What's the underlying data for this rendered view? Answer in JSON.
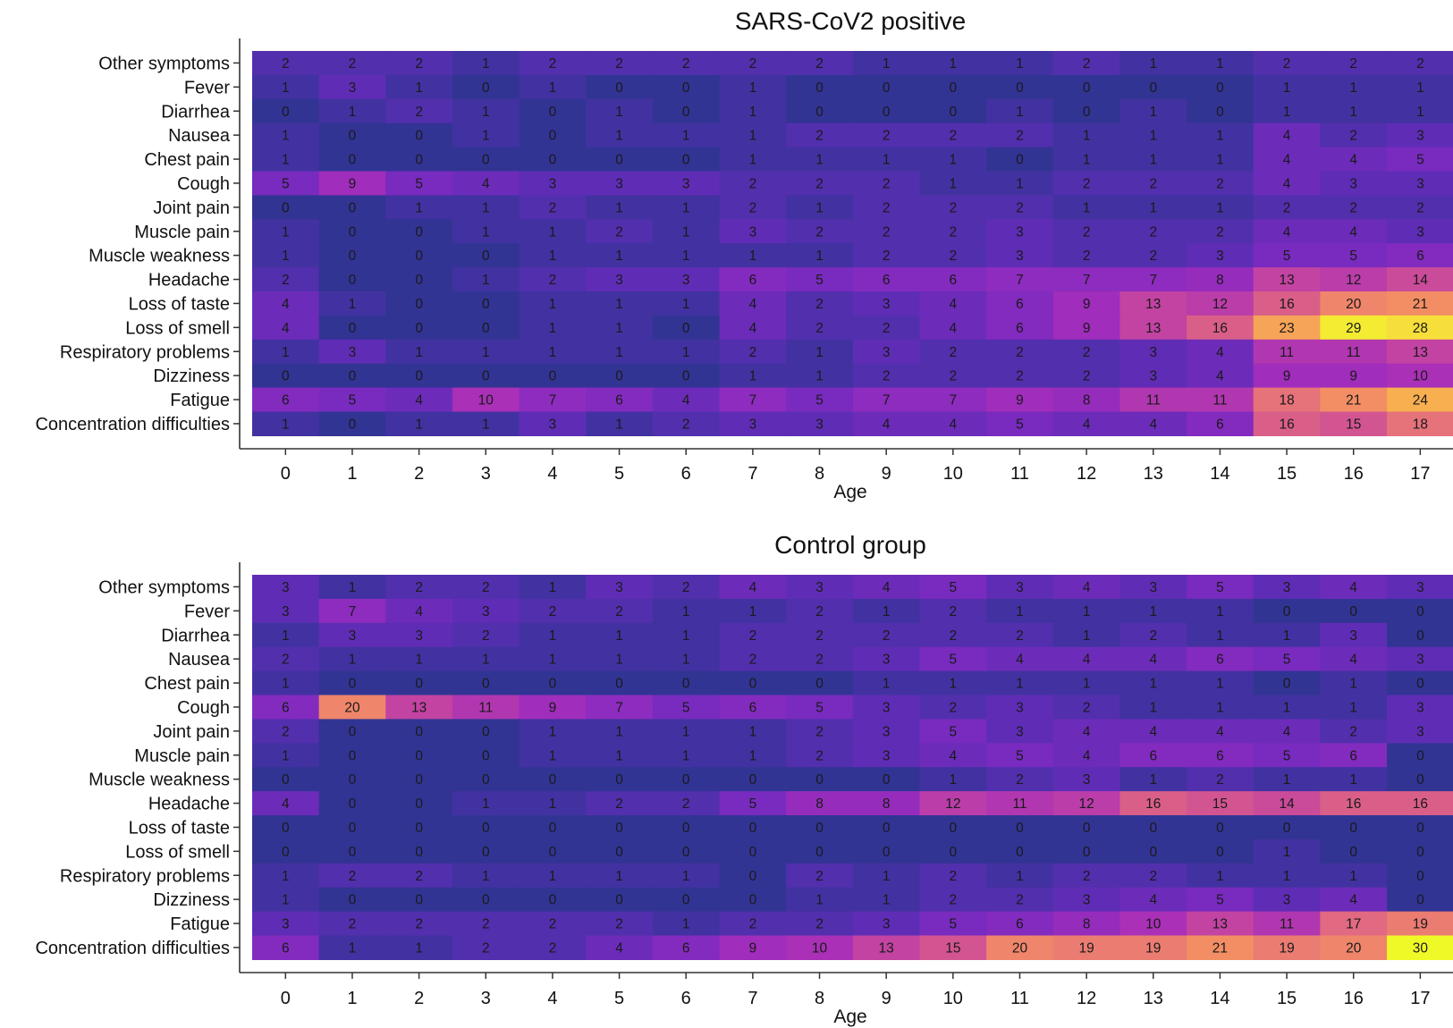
{
  "chart_data": [
    {
      "type": "heatmap",
      "title": "SARS-CoV2 positive",
      "xlabel": "Age",
      "ylabel": "",
      "x": [
        "0",
        "1",
        "2",
        "3",
        "4",
        "5",
        "6",
        "7",
        "8",
        "9",
        "10",
        "11",
        "12",
        "13",
        "14",
        "15",
        "16",
        "17"
      ],
      "y": [
        "Other symptoms",
        "Fever",
        "Diarrhea",
        "Nausea",
        "Chest pain",
        "Cough",
        "Joint pain",
        "Muscle pain",
        "Muscle weakness",
        "Headache",
        "Loss of taste",
        "Loss of smell",
        "Respiratory problems",
        "Dizziness",
        "Fatigue",
        "Concentration difficulties"
      ],
      "values": [
        [
          2,
          2,
          2,
          1,
          2,
          2,
          2,
          2,
          2,
          1,
          1,
          1,
          2,
          1,
          1,
          2,
          2,
          2
        ],
        [
          1,
          3,
          1,
          0,
          1,
          0,
          0,
          1,
          0,
          0,
          0,
          0,
          0,
          0,
          0,
          1,
          1,
          1
        ],
        [
          0,
          1,
          2,
          1,
          0,
          1,
          0,
          1,
          0,
          0,
          0,
          1,
          0,
          1,
          0,
          1,
          1,
          1
        ],
        [
          1,
          0,
          0,
          1,
          0,
          1,
          1,
          1,
          2,
          2,
          2,
          2,
          1,
          1,
          1,
          4,
          2,
          3
        ],
        [
          1,
          0,
          0,
          0,
          0,
          0,
          0,
          1,
          1,
          1,
          1,
          0,
          1,
          1,
          1,
          4,
          4,
          5
        ],
        [
          5,
          9,
          5,
          4,
          3,
          3,
          3,
          2,
          2,
          2,
          1,
          1,
          2,
          2,
          2,
          4,
          3,
          3
        ],
        [
          0,
          0,
          1,
          1,
          2,
          1,
          1,
          2,
          1,
          2,
          2,
          2,
          1,
          1,
          1,
          2,
          2,
          2
        ],
        [
          1,
          0,
          0,
          1,
          1,
          2,
          1,
          3,
          2,
          2,
          2,
          3,
          2,
          2,
          2,
          4,
          4,
          3
        ],
        [
          1,
          0,
          0,
          0,
          1,
          1,
          1,
          1,
          1,
          2,
          2,
          3,
          2,
          2,
          3,
          5,
          5,
          6
        ],
        [
          2,
          0,
          0,
          1,
          2,
          3,
          3,
          6,
          5,
          6,
          6,
          7,
          7,
          7,
          8,
          13,
          12,
          14
        ],
        [
          4,
          1,
          0,
          0,
          1,
          1,
          1,
          4,
          2,
          3,
          4,
          6,
          9,
          13,
          12,
          16,
          20,
          21
        ],
        [
          4,
          0,
          0,
          0,
          1,
          1,
          0,
          4,
          2,
          2,
          4,
          6,
          9,
          13,
          16,
          23,
          29,
          28
        ],
        [
          1,
          3,
          1,
          1,
          1,
          1,
          1,
          2,
          1,
          3,
          2,
          2,
          2,
          3,
          4,
          11,
          11,
          13
        ],
        [
          0,
          0,
          0,
          0,
          0,
          0,
          0,
          1,
          1,
          2,
          2,
          2,
          2,
          3,
          4,
          9,
          9,
          10
        ],
        [
          6,
          5,
          4,
          10,
          7,
          6,
          4,
          7,
          5,
          7,
          7,
          9,
          8,
          11,
          11,
          18,
          21,
          24
        ],
        [
          1,
          0,
          1,
          1,
          3,
          1,
          2,
          3,
          3,
          4,
          4,
          5,
          4,
          4,
          6,
          16,
          15,
          18
        ]
      ],
      "color_range": [
        0,
        30
      ]
    },
    {
      "type": "heatmap",
      "title": "Control group",
      "xlabel": "Age",
      "ylabel": "",
      "x": [
        "0",
        "1",
        "2",
        "3",
        "4",
        "5",
        "6",
        "7",
        "8",
        "9",
        "10",
        "11",
        "12",
        "13",
        "14",
        "15",
        "16",
        "17"
      ],
      "y": [
        "Other symptoms",
        "Fever",
        "Diarrhea",
        "Nausea",
        "Chest pain",
        "Cough",
        "Joint pain",
        "Muscle pain",
        "Muscle weakness",
        "Headache",
        "Loss of taste",
        "Loss of smell",
        "Respiratory problems",
        "Dizziness",
        "Fatigue",
        "Concentration difficulties"
      ],
      "values": [
        [
          3,
          1,
          2,
          2,
          1,
          3,
          2,
          4,
          3,
          4,
          5,
          3,
          4,
          3,
          5,
          3,
          4,
          3
        ],
        [
          3,
          7,
          4,
          3,
          2,
          2,
          1,
          1,
          2,
          1,
          2,
          1,
          1,
          1,
          1,
          0,
          0,
          0
        ],
        [
          1,
          3,
          3,
          2,
          1,
          1,
          1,
          2,
          2,
          2,
          2,
          2,
          1,
          2,
          1,
          1,
          3,
          0
        ],
        [
          2,
          1,
          1,
          1,
          1,
          1,
          1,
          2,
          2,
          3,
          5,
          4,
          4,
          4,
          6,
          5,
          4,
          3
        ],
        [
          1,
          0,
          0,
          0,
          0,
          0,
          0,
          0,
          0,
          1,
          1,
          1,
          1,
          1,
          1,
          0,
          1,
          0
        ],
        [
          6,
          20,
          13,
          11,
          9,
          7,
          5,
          6,
          5,
          3,
          2,
          3,
          2,
          1,
          1,
          1,
          1,
          3
        ],
        [
          2,
          0,
          0,
          0,
          1,
          1,
          1,
          1,
          2,
          3,
          5,
          3,
          4,
          4,
          4,
          4,
          2,
          3
        ],
        [
          1,
          0,
          0,
          0,
          1,
          1,
          1,
          1,
          2,
          3,
          4,
          5,
          4,
          6,
          6,
          5,
          6,
          0
        ],
        [
          0,
          0,
          0,
          0,
          0,
          0,
          0,
          0,
          0,
          0,
          1,
          2,
          3,
          1,
          2,
          1,
          1,
          0
        ],
        [
          4,
          0,
          0,
          1,
          1,
          2,
          2,
          5,
          8,
          8,
          12,
          11,
          12,
          16,
          15,
          14,
          16,
          16
        ],
        [
          0,
          0,
          0,
          0,
          0,
          0,
          0,
          0,
          0,
          0,
          0,
          0,
          0,
          0,
          0,
          0,
          0,
          0
        ],
        [
          0,
          0,
          0,
          0,
          0,
          0,
          0,
          0,
          0,
          0,
          0,
          0,
          0,
          0,
          0,
          1,
          0,
          0
        ],
        [
          1,
          2,
          2,
          1,
          1,
          1,
          1,
          0,
          2,
          1,
          2,
          1,
          2,
          2,
          1,
          1,
          1,
          0
        ],
        [
          1,
          0,
          0,
          0,
          0,
          0,
          0,
          0,
          1,
          1,
          2,
          2,
          3,
          4,
          5,
          3,
          4,
          0
        ],
        [
          3,
          2,
          2,
          2,
          2,
          2,
          1,
          2,
          2,
          3,
          5,
          6,
          8,
          10,
          13,
          11,
          17,
          19
        ],
        [
          6,
          1,
          1,
          2,
          2,
          4,
          6,
          9,
          10,
          13,
          15,
          20,
          19,
          19,
          21,
          19,
          20,
          30
        ]
      ],
      "color_range": [
        0,
        30
      ]
    }
  ]
}
